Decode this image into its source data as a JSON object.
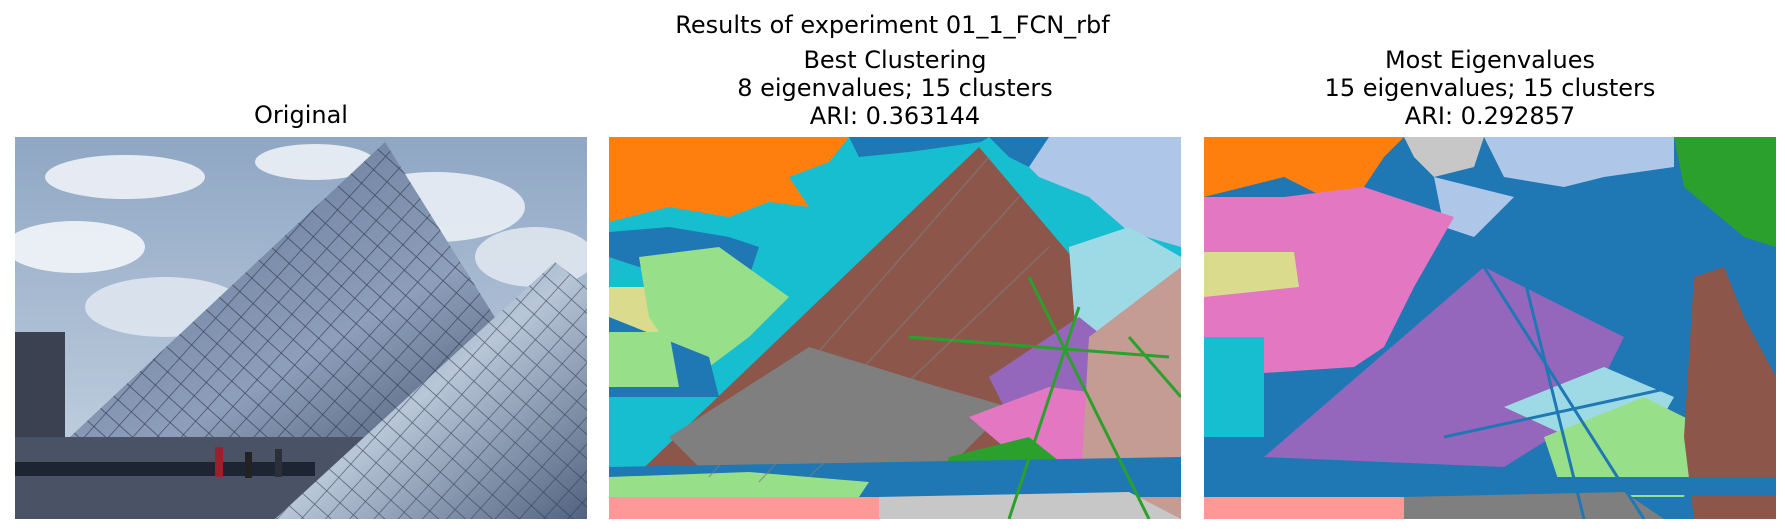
{
  "figure": {
    "suptitle": "Results of experiment 01_1_FCN_rbf",
    "panels": [
      {
        "title_lines": [
          "Original"
        ]
      },
      {
        "title_lines": [
          "Best Clustering",
          "8 eigenvalues; 15 clusters",
          "ARI: 0.363144"
        ]
      },
      {
        "title_lines": [
          "Most Eigenvalues",
          "15 eigenvalues; 15 clusters",
          "ARI: 0.292857"
        ]
      }
    ]
  },
  "colors": {
    "tab_blue": "#1f77b4",
    "tab_orange": "#ff7f0e",
    "tab_green": "#2ca02c",
    "tab_brown": "#8c564b",
    "tab_pink": "#e377c2",
    "tab_gray": "#7f7f7f",
    "tab_olive": "#dbdb8d",
    "tab_cyan": "#17becf",
    "tab_lightblue": "#aec7e8",
    "tab_lightcyan": "#9edae5",
    "tab_lightgreen": "#98df8a",
    "tab_purple": "#9467bd",
    "tab_salmon": "#ff9896",
    "tab_lightgray": "#c7c7c7",
    "tab_tan": "#c49c94"
  }
}
